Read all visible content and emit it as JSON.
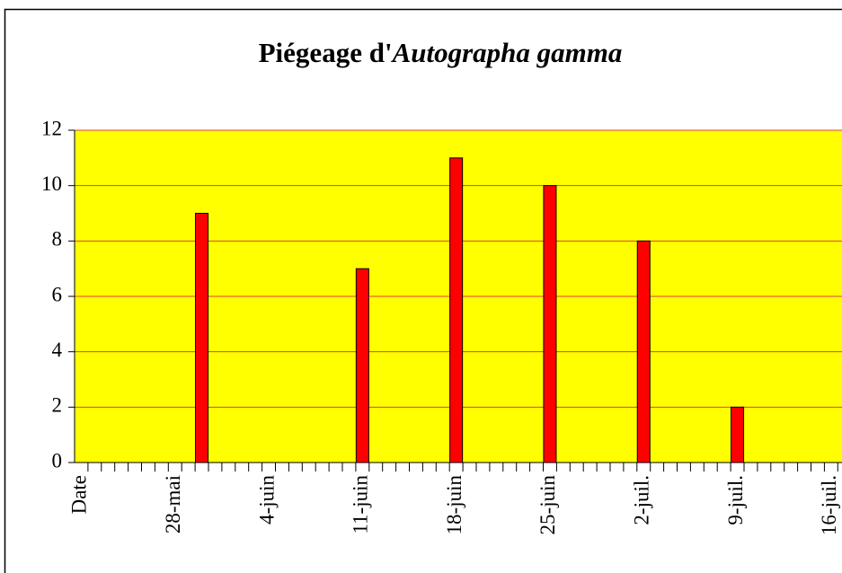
{
  "chart_data": {
    "type": "bar",
    "title": [
      "Piégeage d'",
      "Autographa gamma"
    ],
    "categories": [
      "Date",
      null,
      null,
      null,
      null,
      null,
      null,
      "28-mai",
      null,
      null,
      null,
      null,
      null,
      null,
      "4-juin",
      null,
      null,
      null,
      null,
      null,
      null,
      "11-juin",
      null,
      null,
      null,
      null,
      null,
      null,
      "18-juin",
      null,
      null,
      null,
      null,
      null,
      null,
      "25-juin",
      null,
      null,
      null,
      null,
      null,
      null,
      "2-juil.",
      null,
      null,
      null,
      null,
      null,
      null,
      "9-juil.",
      null,
      null,
      null,
      null,
      null,
      null,
      "16-juil."
    ],
    "values": [
      null,
      null,
      null,
      null,
      null,
      null,
      null,
      null,
      null,
      9,
      null,
      null,
      null,
      null,
      null,
      null,
      null,
      null,
      null,
      null,
      null,
      7,
      null,
      null,
      null,
      null,
      null,
      null,
      11,
      null,
      null,
      null,
      null,
      null,
      null,
      10,
      null,
      null,
      null,
      null,
      null,
      null,
      8,
      null,
      null,
      null,
      null,
      null,
      null,
      2,
      null,
      null,
      null,
      null,
      null,
      null,
      null
    ],
    "color": "#ff0000",
    "plot_background": "#ffff00",
    "grid_color": "#e04040",
    "ylim": [
      0,
      12
    ],
    "yticks": [
      0,
      2,
      4,
      6,
      8,
      10,
      12
    ],
    "grid": true
  }
}
